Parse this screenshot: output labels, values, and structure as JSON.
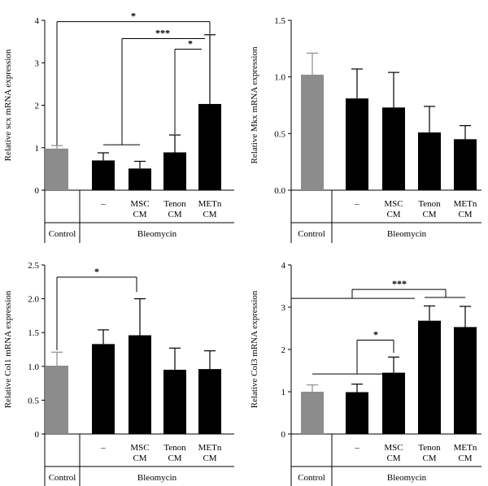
{
  "categories": [
    "Control",
    "–",
    "MSC CM",
    "Tenon CM",
    "METn CM"
  ],
  "group_labels": {
    "control": "Control",
    "bleo": "Bleomycin"
  },
  "colors": {
    "control": "#8c8c8c",
    "treated": "#000000"
  },
  "chart_data": [
    {
      "type": "bar",
      "ylabel": "Relative scx mRNA expression",
      "ylim": [
        0,
        4
      ],
      "yticks": [
        "0",
        "1",
        "2",
        "3",
        "4"
      ],
      "values": [
        0.98,
        0.7,
        0.51,
        0.89,
        2.03
      ],
      "errors": [
        0.07,
        0.18,
        0.17,
        0.41,
        1.63
      ],
      "significance": [
        {
          "label": "*"
        },
        {
          "label": "***"
        },
        {
          "label": "*"
        }
      ]
    },
    {
      "type": "bar",
      "ylabel": "Relative Mkx mRNA expression",
      "ylim": [
        0,
        1.5
      ],
      "yticks": [
        "0.0",
        "0.5",
        "1.0",
        "1.5"
      ],
      "values": [
        1.02,
        0.81,
        0.73,
        0.51,
        0.45
      ],
      "errors": [
        0.19,
        0.26,
        0.31,
        0.23,
        0.12
      ],
      "significance": []
    },
    {
      "type": "bar",
      "ylabel": "Relative Col1 mRNA expression",
      "ylim": [
        0,
        2.5
      ],
      "yticks": [
        "0",
        "0.5",
        "1.0",
        "1.5",
        "2.0",
        "2.5"
      ],
      "values": [
        1.01,
        1.33,
        1.46,
        0.95,
        0.96
      ],
      "errors": [
        0.2,
        0.21,
        0.54,
        0.32,
        0.27
      ],
      "significance": [
        {
          "label": "*"
        }
      ]
    },
    {
      "type": "bar",
      "ylabel": "Relative Col3 mRNA expression",
      "ylim": [
        0,
        4
      ],
      "yticks": [
        "0",
        "1",
        "2",
        "3",
        "4"
      ],
      "values": [
        1.0,
        0.99,
        1.45,
        2.68,
        2.53
      ],
      "errors": [
        0.16,
        0.19,
        0.37,
        0.35,
        0.49
      ],
      "significance": [
        {
          "label": "*"
        },
        {
          "label": "***"
        }
      ]
    }
  ]
}
